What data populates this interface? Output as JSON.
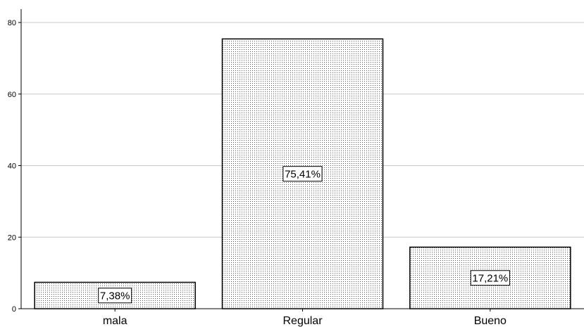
{
  "chart_data": {
    "type": "bar",
    "title": "",
    "xlabel": "",
    "ylabel": "",
    "categories": [
      "mala",
      "Regular",
      "Bueno"
    ],
    "values": [
      7.38,
      75.41,
      17.21
    ],
    "data_labels": [
      "7,38%",
      "75,41%",
      "17,21%"
    ],
    "y_ticks": [
      "0",
      "20",
      "40",
      "60",
      "80"
    ],
    "ylim": [
      0,
      80
    ],
    "grid": true,
    "bar_fill": "dotted pattern",
    "colors": {
      "bar_fill": "#ffffff",
      "bar_dots": "#555555",
      "bar_stroke": "#000000",
      "grid": "#c8c8c8",
      "axis": "#000000"
    }
  }
}
